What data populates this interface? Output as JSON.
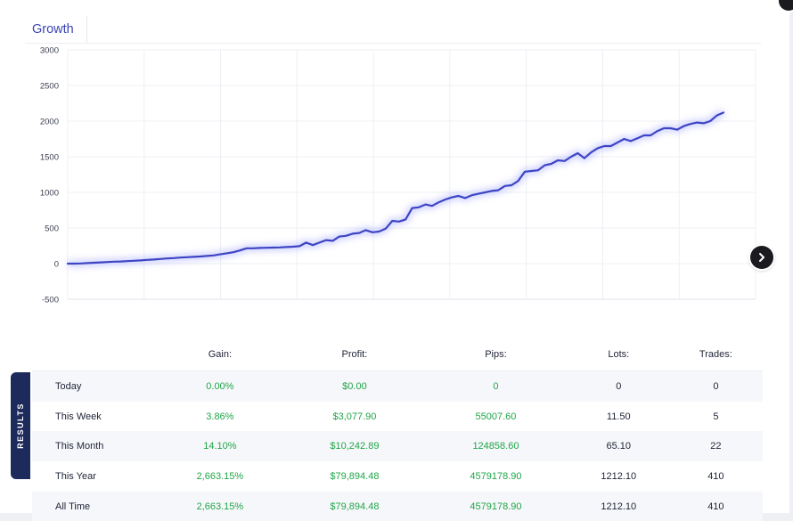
{
  "tab": {
    "label": "Growth"
  },
  "chart_data": {
    "type": "line",
    "title": "",
    "xlabel": "",
    "ylabel": "",
    "ylim": [
      -500,
      3000
    ],
    "yticks": [
      3000,
      2500,
      2000,
      1500,
      1000,
      500,
      0,
      -500
    ],
    "grid": true,
    "color": "#3d45c4",
    "x": [
      0,
      1,
      2,
      3,
      4,
      5,
      6,
      7,
      8,
      9,
      10,
      11,
      12,
      13,
      14,
      15,
      16,
      17,
      18,
      19,
      20,
      21,
      22,
      23,
      24,
      25,
      26,
      27,
      28,
      29,
      30,
      31,
      32,
      33,
      34,
      35,
      36,
      37,
      38,
      39,
      40,
      41,
      42,
      43,
      44,
      45,
      46,
      47,
      48,
      49,
      50,
      51,
      52,
      53,
      54,
      55,
      56,
      57,
      58,
      59,
      60,
      61,
      62,
      63,
      64,
      65,
      66,
      67,
      68,
      69,
      70,
      71,
      72,
      73,
      74,
      75,
      76,
      77,
      78,
      79,
      80,
      81,
      82,
      83,
      84,
      85,
      86,
      87,
      88,
      89,
      90,
      91,
      92,
      93,
      94,
      95,
      96,
      97,
      98,
      99
    ],
    "values": [
      0,
      0,
      3,
      8,
      12,
      18,
      22,
      28,
      30,
      35,
      40,
      45,
      52,
      58,
      65,
      72,
      78,
      85,
      90,
      95,
      100,
      108,
      115,
      130,
      145,
      160,
      185,
      215,
      215,
      220,
      222,
      225,
      228,
      232,
      238,
      245,
      295,
      260,
      295,
      330,
      320,
      380,
      390,
      420,
      430,
      470,
      440,
      450,
      490,
      600,
      590,
      620,
      780,
      790,
      830,
      810,
      860,
      900,
      930,
      950,
      920,
      960,
      980,
      1000,
      1020,
      1030,
      1090,
      1100,
      1160,
      1290,
      1300,
      1310,
      1380,
      1400,
      1450,
      1440,
      1500,
      1550,
      1480,
      1560,
      1620,
      1650,
      1650,
      1700,
      1750,
      1720,
      1760,
      1800,
      1800,
      1860,
      1900,
      1900,
      1880,
      1930,
      1960,
      1980,
      1970,
      2000,
      2080,
      2120
    ]
  },
  "results": {
    "tab_label": "RESULTS",
    "headers": [
      "",
      "Gain:",
      "Profit:",
      "Pips:",
      "Lots:",
      "Trades:"
    ],
    "rows": [
      {
        "label": "Today",
        "gain": "0.00%",
        "profit": "$0.00",
        "pips": "0",
        "lots": "0",
        "trades": "0"
      },
      {
        "label": "This Week",
        "gain": "3.86%",
        "profit": "$3,077.90",
        "pips": "55007.60",
        "lots": "11.50",
        "trades": "5"
      },
      {
        "label": "This Month",
        "gain": "14.10%",
        "profit": "$10,242.89",
        "pips": "124858.60",
        "lots": "65.10",
        "trades": "22"
      },
      {
        "label": "This Year",
        "gain": "2,663.15%",
        "profit": "$79,894.48",
        "pips": "4579178.90",
        "lots": "1212.10",
        "trades": "410"
      },
      {
        "label": "All Time",
        "gain": "2,663.15%",
        "profit": "$79,894.48",
        "pips": "4579178.90",
        "lots": "1212.10",
        "trades": "410"
      }
    ]
  },
  "icons": {
    "next": "chevron-right-icon"
  }
}
